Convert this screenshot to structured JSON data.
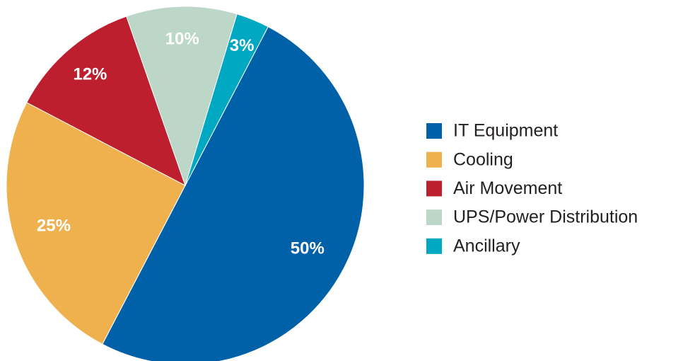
{
  "chart_data": {
    "type": "pie",
    "categories": [
      "IT Equipment",
      "Cooling",
      "Air Movement",
      "UPS/Power Distribution",
      "Ancillary"
    ],
    "values": [
      50,
      25,
      12,
      10,
      3
    ],
    "value_labels": [
      "50%",
      "25%",
      "12%",
      "10%",
      "3%"
    ],
    "colors": [
      "#0061a8",
      "#efb04e",
      "#bd1f2e",
      "#bcd6c8",
      "#00a9c1"
    ],
    "legend": "right"
  }
}
